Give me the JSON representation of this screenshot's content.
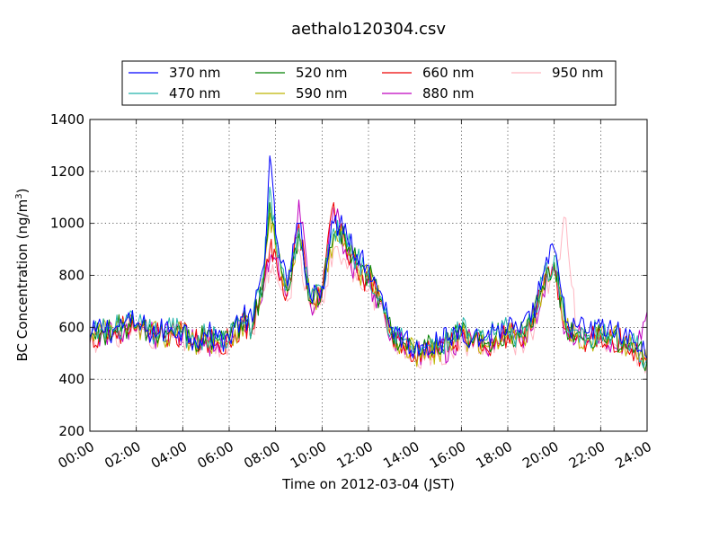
{
  "chart_data": {
    "type": "line",
    "title": "aethalo120304.csv",
    "xlabel": "Time on 2012-03-04 (JST)",
    "ylabel": "BC Concentration (ng/m",
    "ylabel_sup": "3",
    "ylabel_close": ")",
    "xlim": [
      "00:00",
      "24:00"
    ],
    "ylim": [
      200,
      1400
    ],
    "xticks": [
      "00:00",
      "02:00",
      "04:00",
      "06:00",
      "08:00",
      "10:00",
      "12:00",
      "14:00",
      "16:00",
      "18:00",
      "20:00",
      "22:00",
      "24:00"
    ],
    "yticks": [
      200,
      400,
      600,
      800,
      1000,
      1200,
      1400
    ],
    "grid": true,
    "legend_position": "top-center",
    "x": [
      "00:00",
      "00:30",
      "01:00",
      "01:30",
      "02:00",
      "02:30",
      "03:00",
      "03:30",
      "04:00",
      "04:30",
      "05:00",
      "05:30",
      "06:00",
      "06:30",
      "07:00",
      "07:30",
      "07:45",
      "08:00",
      "08:30",
      "09:00",
      "09:30",
      "10:00",
      "10:30",
      "11:00",
      "11:30",
      "12:00",
      "12:30",
      "13:00",
      "13:30",
      "14:00",
      "14:30",
      "15:00",
      "15:30",
      "16:00",
      "16:30",
      "17:00",
      "17:30",
      "18:00",
      "18:30",
      "19:00",
      "19:30",
      "20:00",
      "20:30",
      "21:00",
      "21:30",
      "22:00",
      "22:30",
      "23:00",
      "23:30",
      "24:00"
    ],
    "series": [
      {
        "name": "370 nm",
        "color": "#0000ff",
        "values": [
          560,
          600,
          590,
          620,
          610,
          590,
          580,
          600,
          590,
          560,
          570,
          560,
          560,
          640,
          620,
          840,
          1260,
          960,
          760,
          1000,
          720,
          760,
          1000,
          1000,
          880,
          840,
          740,
          600,
          560,
          520,
          540,
          530,
          560,
          600,
          560,
          560,
          590,
          600,
          580,
          620,
          800,
          900,
          620,
          600,
          580,
          600,
          580,
          570,
          540,
          480
        ]
      },
      {
        "name": "470 nm",
        "color": "#20b2aa",
        "values": [
          555,
          595,
          585,
          615,
          605,
          585,
          575,
          595,
          585,
          555,
          565,
          555,
          555,
          630,
          610,
          820,
          1140,
          940,
          750,
          980,
          710,
          750,
          980,
          960,
          860,
          820,
          720,
          590,
          550,
          510,
          530,
          520,
          550,
          590,
          550,
          550,
          580,
          590,
          570,
          610,
          780,
          870,
          610,
          590,
          570,
          590,
          570,
          560,
          530,
          475
        ]
      },
      {
        "name": "520 nm",
        "color": "#008000",
        "values": [
          550,
          590,
          580,
          610,
          600,
          580,
          570,
          590,
          580,
          550,
          560,
          550,
          550,
          620,
          600,
          800,
          1080,
          920,
          740,
          960,
          700,
          740,
          960,
          940,
          840,
          800,
          710,
          580,
          540,
          500,
          520,
          510,
          540,
          580,
          540,
          540,
          570,
          580,
          560,
          600,
          760,
          850,
          600,
          580,
          560,
          580,
          560,
          550,
          520,
          470
        ]
      },
      {
        "name": "590 nm",
        "color": "#bdb500",
        "values": [
          548,
          588,
          578,
          606,
          596,
          578,
          568,
          586,
          578,
          548,
          556,
          548,
          548,
          616,
          596,
          790,
          1040,
          900,
          735,
          950,
          696,
          736,
          950,
          930,
          830,
          790,
          706,
          576,
          536,
          496,
          516,
          506,
          536,
          576,
          536,
          536,
          566,
          576,
          556,
          596,
          750,
          840,
          596,
          576,
          556,
          576,
          556,
          546,
          516,
          466
        ]
      },
      {
        "name": "660 nm",
        "color": "#ee0000",
        "values": [
          545,
          585,
          575,
          600,
          590,
          575,
          565,
          580,
          575,
          545,
          550,
          545,
          545,
          610,
          590,
          780,
          900,
          880,
          730,
          1000,
          690,
          730,
          1080,
          920,
          820,
          780,
          700,
          570,
          530,
          490,
          510,
          500,
          530,
          570,
          530,
          530,
          560,
          570,
          550,
          590,
          740,
          830,
          590,
          570,
          550,
          570,
          550,
          540,
          510,
          460
        ]
      },
      {
        "name": "880 nm",
        "color": "#bf00bf",
        "values": [
          540,
          580,
          570,
          596,
          586,
          570,
          560,
          576,
          570,
          540,
          546,
          540,
          540,
          600,
          586,
          770,
          860,
          860,
          720,
          1090,
          686,
          720,
          1060,
          900,
          810,
          770,
          690,
          566,
          526,
          486,
          506,
          496,
          526,
          566,
          526,
          526,
          556,
          566,
          546,
          586,
          730,
          820,
          586,
          566,
          546,
          566,
          546,
          536,
          506,
          660
        ]
      },
      {
        "name": "950 nm",
        "color": "#ffb6c1",
        "values": [
          535,
          575,
          565,
          590,
          580,
          565,
          555,
          570,
          565,
          535,
          540,
          535,
          535,
          590,
          580,
          740,
          820,
          800,
          700,
          900,
          680,
          710,
          900,
          860,
          780,
          740,
          680,
          560,
          520,
          480,
          500,
          490,
          520,
          560,
          520,
          520,
          550,
          560,
          540,
          580,
          720,
          810,
          1020,
          560,
          540,
          560,
          540,
          530,
          500,
          450
        ]
      }
    ]
  }
}
